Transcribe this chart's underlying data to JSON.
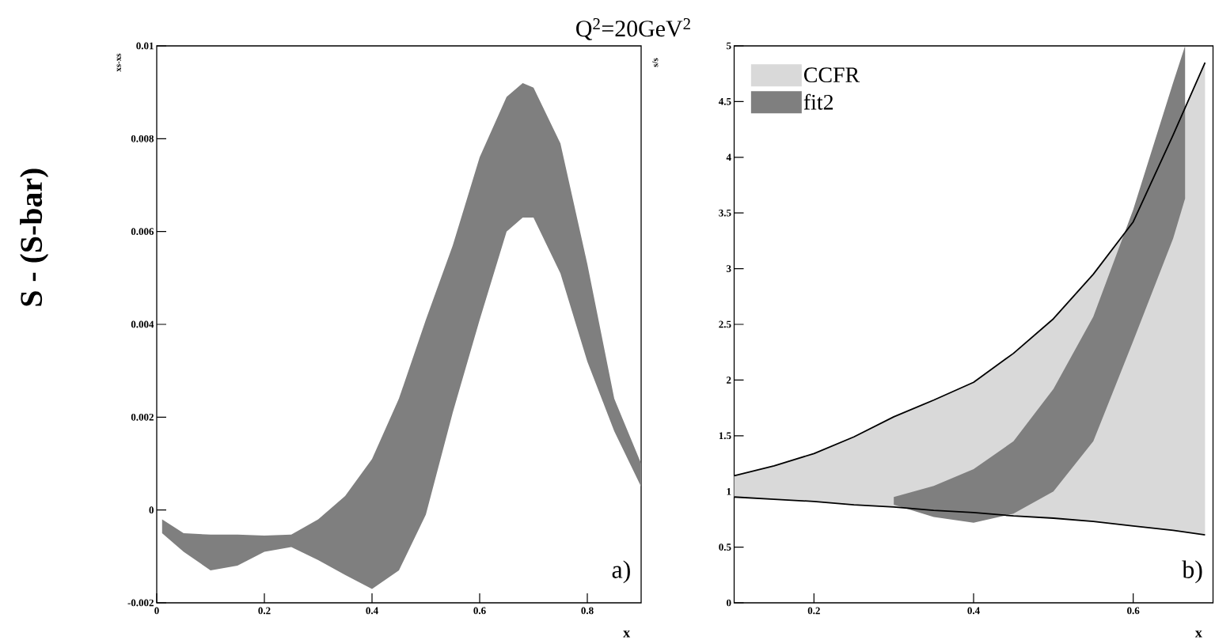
{
  "chart_data": [
    {
      "type": "line",
      "title": "Q$^{2}$=20GeV$^{2}$",
      "ylabel": "S - (S-bar)",
      "xlabel": "x",
      "annotations": [
        "xs-xs",
        "a)"
      ],
      "xlim": [
        0,
        0.9
      ],
      "ylim": [
        -0.002,
        0.01
      ],
      "xticks": [
        0,
        0.2,
        0.4,
        0.6,
        0.8
      ],
      "yticks": [
        -0.002,
        0,
        0.002,
        0.004,
        0.006,
        0.008,
        0.01
      ],
      "series": [
        {
          "color": "#7f7f7f",
          "x": [
            0.01,
            0.05,
            0.1,
            0.15,
            0.2,
            0.25,
            0.3,
            0.35,
            0.4,
            0.45,
            0.5,
            0.55,
            0.6,
            0.65,
            0.68,
            0.7,
            0.75,
            0.8,
            0.85,
            0.9
          ],
          "values": [
            null,
            null,
            null,
            null,
            null,
            null,
            null,
            null,
            null,
            null,
            null,
            null,
            null,
            null,
            null,
            null,
            null,
            null,
            null,
            null
          ],
          "upper": [
            -0.0002,
            -0.0005,
            -0.00053,
            -0.00053,
            -0.00055,
            -0.00053,
            -0.0002,
            0.0003,
            0.0011,
            0.0024,
            0.0041,
            0.0057,
            0.0076,
            0.0089,
            0.0092,
            0.0091,
            0.0079,
            0.0053,
            0.0024,
            0.001
          ],
          "lower": [
            -0.0005,
            -0.0009,
            -0.0013,
            -0.0012,
            -0.0009,
            -0.0008,
            -0.00108,
            -0.0014,
            -0.0017,
            -0.0013,
            -0.0001,
            0.0021,
            0.0041,
            0.006,
            0.0063,
            0.0063,
            0.0051,
            0.0032,
            0.0017,
            0.0005
          ]
        }
      ]
    },
    {
      "type": "line",
      "ylabel": "s/s",
      "xlabel": "x",
      "annotations": [
        "b)"
      ],
      "legend": "top left",
      "xlim": [
        0.1,
        0.7
      ],
      "ylim": [
        0,
        5
      ],
      "xticks": [
        0.2,
        0.4,
        0.6
      ],
      "yticks": [
        0,
        0.5,
        1,
        1.5,
        2,
        2.5,
        3,
        3.5,
        4,
        4.5,
        5
      ],
      "series": [
        {
          "name": "CCFR",
          "color": "#d9d9d9",
          "x": [
            0.1,
            0.15,
            0.2,
            0.25,
            0.3,
            0.35,
            0.4,
            0.45,
            0.5,
            0.55,
            0.6,
            0.65,
            0.69
          ],
          "values": [
            null,
            null,
            null,
            null,
            null,
            null,
            null,
            null,
            null,
            null,
            null,
            null,
            null
          ],
          "upper": [
            1.14,
            1.23,
            1.34,
            1.49,
            1.67,
            1.82,
            1.98,
            2.24,
            2.55,
            2.95,
            3.42,
            4.2,
            4.85
          ],
          "lower": [
            0.95,
            0.93,
            0.91,
            0.88,
            0.86,
            0.83,
            0.81,
            0.78,
            0.76,
            0.73,
            0.69,
            0.65,
            0.61
          ]
        },
        {
          "name": "fit2",
          "color": "#7f7f7f",
          "x": [
            0.3,
            0.35,
            0.4,
            0.45,
            0.5,
            0.55,
            0.6,
            0.65,
            0.665
          ],
          "values": [
            null,
            null,
            null,
            null,
            null,
            null,
            null,
            null,
            null
          ],
          "upper": [
            0.95,
            1.05,
            1.2,
            1.45,
            1.92,
            2.57,
            3.53,
            4.67,
            5.0
          ],
          "lower": [
            0.88,
            0.77,
            0.72,
            0.8,
            1.0,
            1.45,
            2.35,
            3.27,
            3.63
          ]
        },
        {
          "color": "#000000",
          "line_style": "solid",
          "x": [
            0.1,
            0.15,
            0.2,
            0.25,
            0.3,
            0.35,
            0.4,
            0.45,
            0.5,
            0.55,
            0.6,
            0.65,
            0.69
          ],
          "values": [
            1.14,
            1.23,
            1.34,
            1.49,
            1.67,
            1.82,
            1.98,
            2.24,
            2.55,
            2.95,
            3.42,
            4.2,
            4.85
          ]
        },
        {
          "color": "#000000",
          "line_style": "solid",
          "x": [
            0.1,
            0.15,
            0.2,
            0.25,
            0.3,
            0.35,
            0.4,
            0.45,
            0.5,
            0.55,
            0.6,
            0.65,
            0.69
          ],
          "values": [
            0.95,
            0.93,
            0.91,
            0.88,
            0.86,
            0.83,
            0.81,
            0.78,
            0.76,
            0.73,
            0.69,
            0.65,
            0.61
          ]
        }
      ]
    }
  ]
}
